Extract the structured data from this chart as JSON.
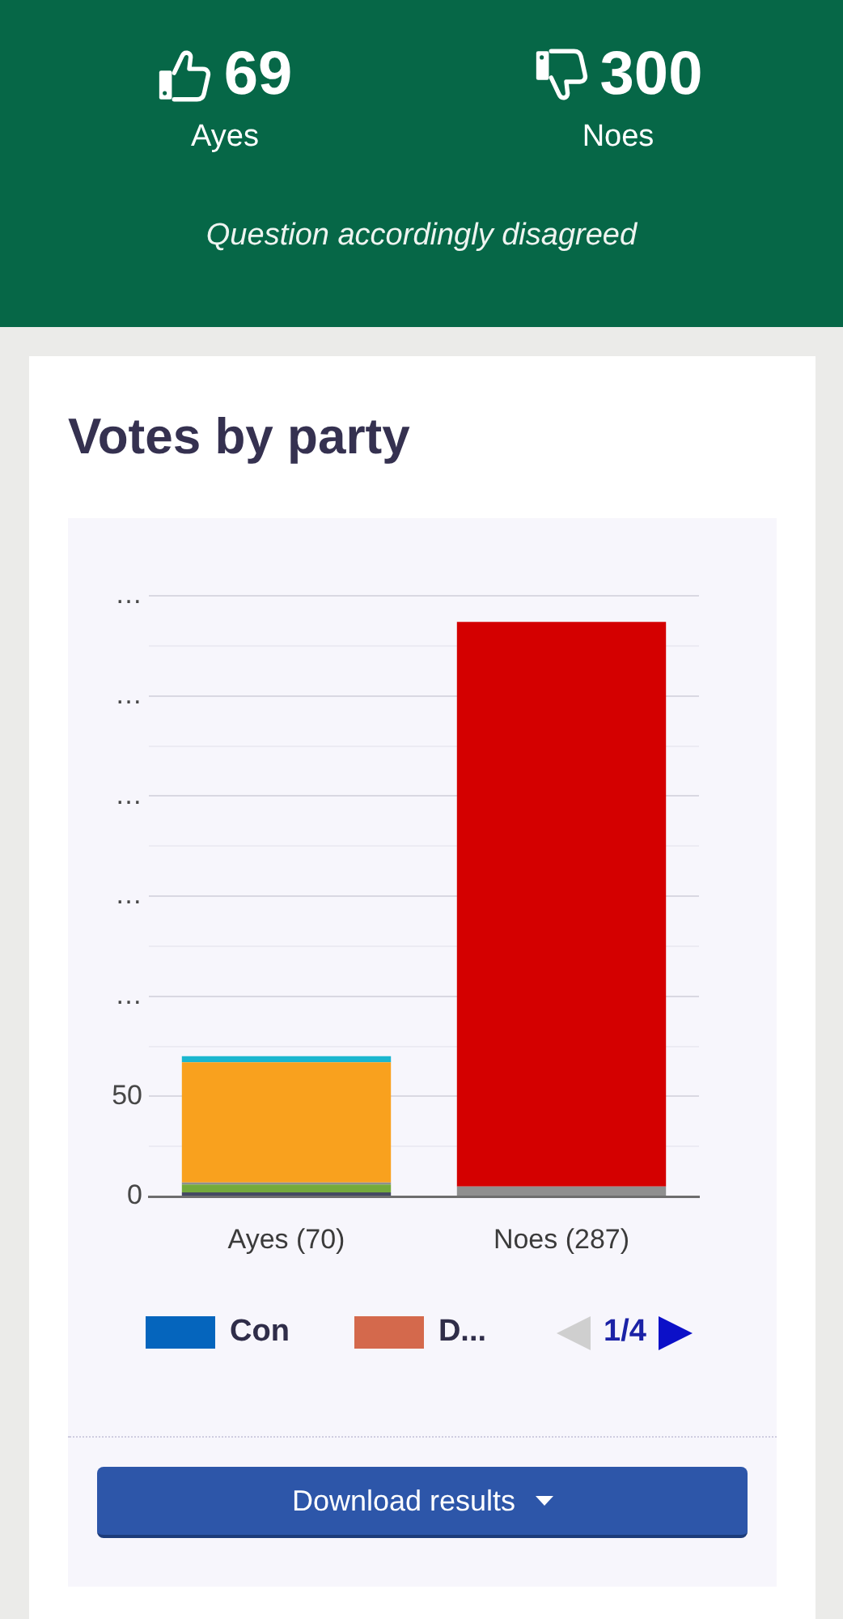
{
  "chart_data": [
    {
      "type": "other",
      "categories": [
        "Ayes",
        "Noes"
      ],
      "values": [
        69,
        300
      ],
      "data_labels": true,
      "annotations": [
        "Question accordingly disagreed"
      ]
    },
    {
      "type": "bar",
      "title": "Votes by party",
      "categories": [
        "Ayes (70)",
        "Noes (287)"
      ],
      "stacked": true,
      "series": [
        {
          "name": "Con",
          "color": "#0565bd",
          "values": [
            null,
            null
          ]
        },
        {
          "name": "D...",
          "color": "#d4694c",
          "values": [
            null,
            null
          ]
        },
        {
          "color": "#454a62",
          "values": [
            2,
            null
          ]
        },
        {
          "color": "#74aa3c",
          "values": [
            4,
            null
          ]
        },
        {
          "color": "#8f8f8f",
          "values": [
            1,
            5
          ]
        },
        {
          "color": "#f9a11e",
          "values": [
            60,
            null
          ]
        },
        {
          "color": "#d40000",
          "values": [
            null,
            282
          ]
        },
        {
          "color": "#1bb6cf",
          "values": [
            3,
            null
          ]
        }
      ],
      "ylim": [
        0,
        300
      ],
      "yticks": [
        0,
        {
          "value": 25,
          "label": null
        },
        50,
        {
          "value": 75,
          "label": null
        },
        {
          "value": 100,
          "label": "…"
        },
        {
          "value": 125,
          "label": null
        },
        {
          "value": 150,
          "label": "…"
        },
        {
          "value": 175,
          "label": null
        },
        {
          "value": 200,
          "label": "…"
        },
        {
          "value": 225,
          "label": null
        },
        {
          "value": 250,
          "label": "…"
        },
        {
          "value": 275,
          "label": null
        },
        {
          "value": 300,
          "label": "…"
        }
      ],
      "grid": "y",
      "legend": "bottom",
      "annotations": [
        "1/4",
        "Download results"
      ]
    }
  ]
}
